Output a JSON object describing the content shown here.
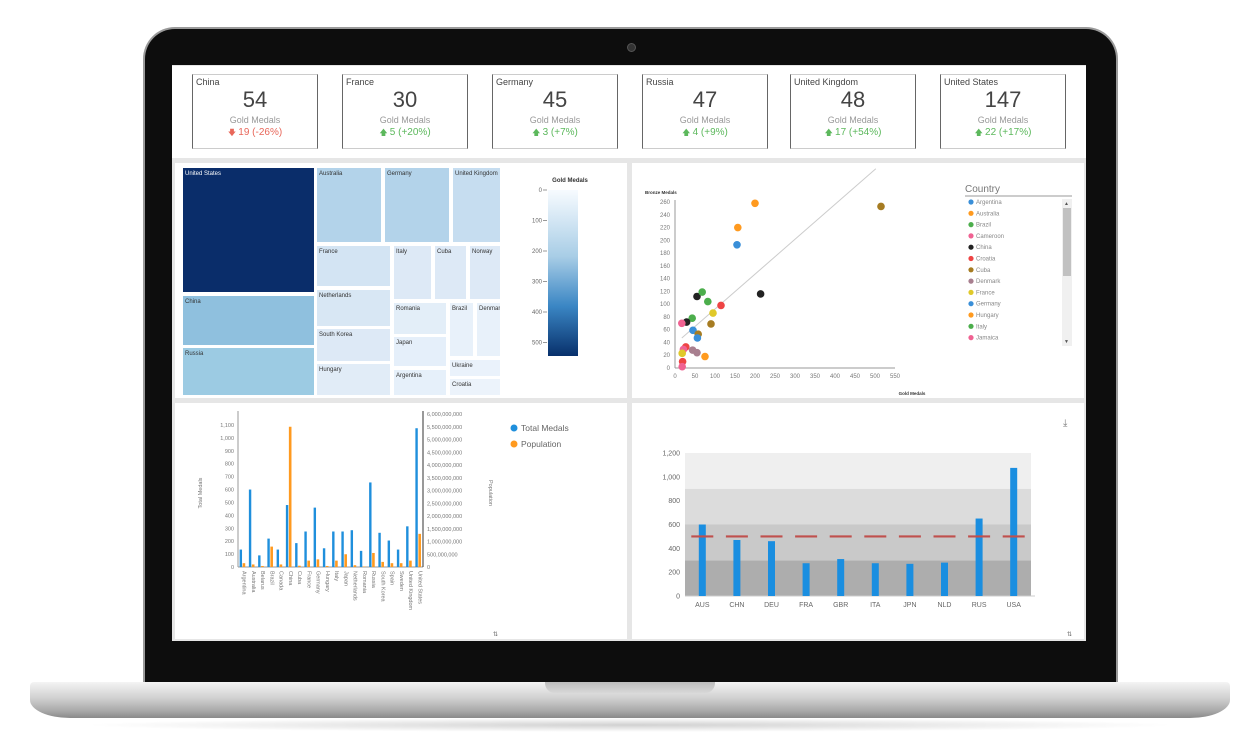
{
  "kpis": [
    {
      "country": "China",
      "value": "54",
      "label": "Gold Medals",
      "delta": "19 (-26%)",
      "trend": "down"
    },
    {
      "country": "France",
      "value": "30",
      "label": "Gold Medals",
      "delta": "5 (+20%)",
      "trend": "up"
    },
    {
      "country": "Germany",
      "value": "45",
      "label": "Gold Medals",
      "delta": "3 (+7%)",
      "trend": "up"
    },
    {
      "country": "Russia",
      "value": "47",
      "label": "Gold Medals",
      "delta": "4 (+9%)",
      "trend": "up"
    },
    {
      "country": "United Kingdom",
      "value": "48",
      "label": "Gold Medals",
      "delta": "17 (+54%)",
      "trend": "up"
    },
    {
      "country": "United States",
      "value": "147",
      "label": "Gold Medals",
      "delta": "22 (+17%)",
      "trend": "up"
    }
  ],
  "colors": {
    "up": "#5cb85c",
    "down": "#e8675a",
    "blue": "#1f8fdc",
    "orange": "#ff9a1f",
    "target": "#c0504d"
  },
  "chart_data": [
    {
      "type": "treemap",
      "legend_title": "Gold Medals",
      "legend_ticks": [
        "0",
        "100",
        "200",
        "300",
        "400",
        "500"
      ],
      "tiles": [
        "United States",
        "China",
        "Russia",
        "Australia",
        "Germany",
        "United Kingdom",
        "France",
        "Italy",
        "Cuba",
        "Norway",
        "Netherlands",
        "South Korea",
        "Hungary",
        "Romania",
        "Japan",
        "Argentina",
        "Brazil",
        "Denmark",
        "Ukraine",
        "Croatia"
      ]
    },
    {
      "type": "scatter",
      "xlabel": "Gold Medals",
      "ylabel": "Bronze Medals",
      "xlim": [
        0,
        550
      ],
      "ylim": [
        0,
        260
      ],
      "xticks": [
        "0",
        "50",
        "100",
        "150",
        "200",
        "250",
        "300",
        "350",
        "400",
        "450",
        "500",
        "550"
      ],
      "yticks": [
        "0",
        "20",
        "40",
        "60",
        "80",
        "100",
        "120",
        "140",
        "160",
        "180",
        "200",
        "220",
        "240",
        "260"
      ],
      "trendline": [
        [
          17,
          47
        ],
        [
          502,
          312
        ]
      ],
      "legend_title": "Country",
      "legend": [
        {
          "name": "Argentina",
          "color": "#3a8fd8"
        },
        {
          "name": "Australia",
          "color": "#ff9a1f"
        },
        {
          "name": "Brazil",
          "color": "#4cae4c"
        },
        {
          "name": "Cameroon",
          "color": "#f06292"
        },
        {
          "name": "China",
          "color": "#222222"
        },
        {
          "name": "Croatia",
          "color": "#ee4444"
        },
        {
          "name": "Cuba",
          "color": "#a67c22"
        },
        {
          "name": "Denmark",
          "color": "#a87f8f"
        },
        {
          "name": "France",
          "color": "#e0c92a"
        },
        {
          "name": "Germany",
          "color": "#3a8fd8"
        },
        {
          "name": "Hungary",
          "color": "#ff9a1f"
        },
        {
          "name": "Italy",
          "color": "#4cae4c"
        },
        {
          "name": "Jamaica",
          "color": "#f06292"
        }
      ],
      "points": [
        [
          200,
          258,
          1
        ],
        [
          157,
          220,
          10
        ],
        [
          155,
          193,
          0
        ],
        [
          515,
          253,
          6
        ],
        [
          214,
          116,
          4
        ],
        [
          55,
          112,
          4
        ],
        [
          68,
          119,
          2
        ],
        [
          82,
          104,
          11
        ],
        [
          115,
          98,
          5
        ],
        [
          95,
          86,
          8
        ],
        [
          90,
          69,
          6
        ],
        [
          43,
          78,
          11
        ],
        [
          29,
          72,
          4
        ],
        [
          17,
          70,
          3
        ],
        [
          45,
          59,
          9
        ],
        [
          58,
          53,
          6
        ],
        [
          56,
          47,
          0
        ],
        [
          27,
          33,
          5
        ],
        [
          21,
          29,
          12
        ],
        [
          44,
          28,
          7
        ],
        [
          55,
          24,
          7
        ],
        [
          75,
          18,
          10
        ],
        [
          18,
          23,
          8
        ],
        [
          19,
          10,
          5
        ],
        [
          18,
          2,
          3
        ]
      ]
    },
    {
      "type": "bar",
      "ylabel": "Total Medals",
      "y2label": "Population",
      "ylim": [
        0,
        1100
      ],
      "y2lim": [
        0,
        6000000000
      ],
      "yticks": [
        "0",
        "100",
        "200",
        "300",
        "400",
        "500",
        "600",
        "700",
        "800",
        "900",
        "1,000",
        "1,100"
      ],
      "y2ticks": [
        "0",
        "500,000,000",
        "1,000,000,000",
        "1,500,000,000",
        "2,000,000,000",
        "2,500,000,000",
        "3,000,000,000",
        "3,500,000,000",
        "4,000,000,000",
        "4,500,000,000",
        "5,000,000,000",
        "5,500,000,000",
        "6,000,000,000"
      ],
      "categories": [
        "Argentina",
        "Australia",
        "Belarus",
        "Brazil",
        "Canada",
        "China",
        "Cuba",
        "France",
        "Germany",
        "Hungary",
        "Italy",
        "Japan",
        "Netherlands",
        "Romania",
        "Russia",
        "South Korea",
        "Spain",
        "Sweden",
        "United Kingdom",
        "United States"
      ],
      "series": [
        {
          "name": "Total Medals",
          "values": [
            135,
            600,
            90,
            220,
            135,
            480,
            185,
            275,
            460,
            145,
            275,
            275,
            285,
            125,
            655,
            265,
            205,
            135,
            315,
            1075
          ]
        },
        {
          "name": "Population",
          "values": [
            150000000,
            100000000,
            40000000,
            800000000,
            100000000,
            5500000000,
            50000000,
            250000000,
            300000000,
            40000000,
            250000000,
            500000000,
            70000000,
            20000000,
            550000000,
            200000000,
            150000000,
            150000000,
            250000000,
            1300000000
          ]
        }
      ]
    },
    {
      "type": "bar",
      "ylim": [
        0,
        1200
      ],
      "yticks": [
        "0",
        "200",
        "400",
        "600",
        "800",
        "1,000",
        "1,200"
      ],
      "categories": [
        "AUS",
        "CHN",
        "DEU",
        "FRA",
        "GBR",
        "ITA",
        "JPN",
        "NLD",
        "RUS",
        "USA"
      ],
      "values": [
        600,
        470,
        460,
        275,
        310,
        275,
        270,
        280,
        650,
        1075
      ],
      "target": 500,
      "bands": [
        300,
        600,
        900,
        1200
      ]
    }
  ]
}
